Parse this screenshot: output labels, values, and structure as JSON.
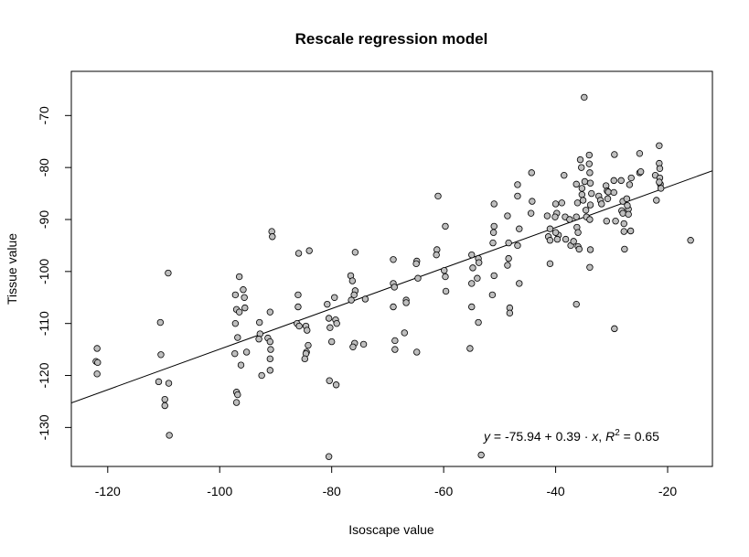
{
  "chart_data": {
    "type": "scatter",
    "title": "Rescale regression model",
    "xlabel": "Isoscape value",
    "ylabel": "Tissue value",
    "xlim": [
      -126.5,
      -12
    ],
    "ylim": [
      -137.5,
      -61.5
    ],
    "xticks": [
      -120,
      -100,
      -80,
      -60,
      -40,
      -20
    ],
    "yticks": [
      -130,
      -120,
      -110,
      -100,
      -90,
      -80,
      -70
    ],
    "grid": false,
    "legend": "none",
    "regression_line": {
      "intercept": -75.94,
      "slope": 0.39
    },
    "annotation": {
      "y_var": "y",
      "eq_mid": " = -75.94 + 0.39 · ",
      "x_var": "x",
      "sep": ",  ",
      "r_var": "R",
      "r_exp": "2",
      "r_val": " = 0.65"
    },
    "points": [
      [
        -121.9,
        -114.8
      ],
      [
        -122.1,
        -117.3
      ],
      [
        -121.8,
        -117.5
      ],
      [
        -121.9,
        -119.7
      ],
      [
        -110.6,
        -109.8
      ],
      [
        -110.5,
        -116.0
      ],
      [
        -110.9,
        -121.2
      ],
      [
        -109.8,
        -124.6
      ],
      [
        -109.8,
        -125.8
      ],
      [
        -109.1,
        -121.5
      ],
      [
        -109.0,
        -131.5
      ],
      [
        -109.2,
        -100.3
      ],
      [
        -97.2,
        -104.5
      ],
      [
        -97.0,
        -107.3
      ],
      [
        -96.5,
        -107.8
      ],
      [
        -96.5,
        -101.0
      ],
      [
        -97.2,
        -110.0
      ],
      [
        -96.8,
        -112.7
      ],
      [
        -97.3,
        -115.8
      ],
      [
        -96.2,
        -118.0
      ],
      [
        -97.0,
        -123.2
      ],
      [
        -96.8,
        -123.7
      ],
      [
        -97.0,
        -125.2
      ],
      [
        -95.8,
        -103.5
      ],
      [
        -95.6,
        -105.0
      ],
      [
        -95.5,
        -107.0
      ],
      [
        -95.2,
        -115.5
      ],
      [
        -92.9,
        -109.8
      ],
      [
        -92.8,
        -112.0
      ],
      [
        -93.0,
        -113.0
      ],
      [
        -92.5,
        -120.0
      ],
      [
        -90.7,
        -92.3
      ],
      [
        -90.6,
        -93.3
      ],
      [
        -91.0,
        -107.8
      ],
      [
        -91.4,
        -112.8
      ],
      [
        -91.0,
        -113.5
      ],
      [
        -90.9,
        -115.0
      ],
      [
        -91.0,
        -116.8
      ],
      [
        -91.0,
        -119.0
      ],
      [
        -85.9,
        -96.5
      ],
      [
        -86.0,
        -104.5
      ],
      [
        -86.0,
        -106.8
      ],
      [
        -86.2,
        -110.0
      ],
      [
        -85.8,
        -110.5
      ],
      [
        -84.6,
        -110.5
      ],
      [
        -84.0,
        -96.0
      ],
      [
        -84.4,
        -111.3
      ],
      [
        -84.2,
        -114.2
      ],
      [
        -84.5,
        -115.5
      ],
      [
        -84.6,
        -115.8
      ],
      [
        -84.8,
        -116.8
      ],
      [
        -80.8,
        -106.3
      ],
      [
        -80.5,
        -109.0
      ],
      [
        -80.3,
        -110.8
      ],
      [
        -80.0,
        -113.5
      ],
      [
        -80.4,
        -121.0
      ],
      [
        -80.5,
        -135.6
      ],
      [
        -79.5,
        -105.0
      ],
      [
        -79.3,
        -109.3
      ],
      [
        -79.1,
        -110.0
      ],
      [
        -79.2,
        -121.8
      ],
      [
        -76.6,
        -100.8
      ],
      [
        -76.3,
        -101.8
      ],
      [
        -75.8,
        -103.7
      ],
      [
        -76.0,
        -104.5
      ],
      [
        -76.5,
        -105.5
      ],
      [
        -75.8,
        -96.3
      ],
      [
        -75.9,
        -113.8
      ],
      [
        -76.2,
        -114.5
      ],
      [
        -74.0,
        -105.3
      ],
      [
        -74.3,
        -114.0
      ],
      [
        -69.0,
        -97.7
      ],
      [
        -69.0,
        -102.3
      ],
      [
        -68.8,
        -103.0
      ],
      [
        -69.0,
        -106.8
      ],
      [
        -68.7,
        -113.3
      ],
      [
        -68.7,
        -115.0
      ],
      [
        -66.7,
        -105.5
      ],
      [
        -66.7,
        -106.0
      ],
      [
        -67.0,
        -111.8
      ],
      [
        -64.8,
        -98.0
      ],
      [
        -64.9,
        -98.5
      ],
      [
        -64.6,
        -101.3
      ],
      [
        -64.8,
        -115.5
      ],
      [
        -61.0,
        -85.5
      ],
      [
        -61.2,
        -95.8
      ],
      [
        -61.3,
        -96.8
      ],
      [
        -59.7,
        -91.3
      ],
      [
        -59.9,
        -99.8
      ],
      [
        -59.7,
        -101.0
      ],
      [
        -59.6,
        -103.8
      ],
      [
        -55.0,
        -96.8
      ],
      [
        -54.8,
        -99.3
      ],
      [
        -55.0,
        -102.3
      ],
      [
        -55.0,
        -106.8
      ],
      [
        -55.3,
        -114.8
      ],
      [
        -53.8,
        -97.5
      ],
      [
        -53.7,
        -98.3
      ],
      [
        -54.0,
        -101.3
      ],
      [
        -53.8,
        -109.8
      ],
      [
        -53.3,
        -135.3
      ],
      [
        -51.0,
        -87.0
      ],
      [
        -51.0,
        -91.3
      ],
      [
        -51.1,
        -92.5
      ],
      [
        -51.2,
        -94.5
      ],
      [
        -51.0,
        -100.8
      ],
      [
        -51.3,
        -104.5
      ],
      [
        -48.6,
        -89.3
      ],
      [
        -48.4,
        -94.5
      ],
      [
        -48.4,
        -97.5
      ],
      [
        -48.6,
        -98.8
      ],
      [
        -48.2,
        -107.0
      ],
      [
        -48.2,
        -108.0
      ],
      [
        -46.8,
        -83.3
      ],
      [
        -46.8,
        -85.5
      ],
      [
        -46.5,
        -91.8
      ],
      [
        -46.8,
        -95.0
      ],
      [
        -46.5,
        -102.3
      ],
      [
        -44.3,
        -81.0
      ],
      [
        -44.2,
        -86.5
      ],
      [
        -44.4,
        -88.8
      ],
      [
        -41.5,
        -89.3
      ],
      [
        -41.0,
        -91.8
      ],
      [
        -41.3,
        -93.3
      ],
      [
        -41.0,
        -94.0
      ],
      [
        -41.0,
        -98.5
      ],
      [
        -40.0,
        -87.0
      ],
      [
        -39.8,
        -88.8
      ],
      [
        -40.1,
        -89.5
      ],
      [
        -39.5,
        -93.0
      ],
      [
        -39.7,
        -93.8
      ],
      [
        -40.0,
        -92.5
      ],
      [
        -38.9,
        -86.8
      ],
      [
        -38.5,
        -81.5
      ],
      [
        -38.3,
        -89.5
      ],
      [
        -38.2,
        -93.8
      ],
      [
        -37.5,
        -90.0
      ],
      [
        -37.3,
        -95.0
      ],
      [
        -36.8,
        -94.2
      ],
      [
        -36.3,
        -83.2
      ],
      [
        -36.1,
        -86.8
      ],
      [
        -36.3,
        -89.5
      ],
      [
        -36.2,
        -91.5
      ],
      [
        -36.0,
        -92.5
      ],
      [
        -36.0,
        -95.2
      ],
      [
        -35.8,
        -95.7
      ],
      [
        -36.3,
        -106.3
      ],
      [
        -35.6,
        -78.5
      ],
      [
        -35.4,
        -80.0
      ],
      [
        -35.3,
        -84.0
      ],
      [
        -35.3,
        -85.2
      ],
      [
        -35.1,
        -86.3
      ],
      [
        -34.9,
        -66.5
      ],
      [
        -34.8,
        -82.7
      ],
      [
        -34.6,
        -88.2
      ],
      [
        -34.5,
        -89.5
      ],
      [
        -34.0,
        -77.6
      ],
      [
        -34.0,
        -79.3
      ],
      [
        -33.9,
        -81.0
      ],
      [
        -33.8,
        -83.0
      ],
      [
        -33.6,
        -85.0
      ],
      [
        -33.8,
        -87.2
      ],
      [
        -33.9,
        -90.0
      ],
      [
        -33.8,
        -95.8
      ],
      [
        -33.9,
        -99.2
      ],
      [
        -32.3,
        -85.5
      ],
      [
        -32.0,
        -86.3
      ],
      [
        -31.8,
        -87.0
      ],
      [
        -31.0,
        -83.5
      ],
      [
        -30.8,
        -84.5
      ],
      [
        -30.7,
        -86.0
      ],
      [
        -30.9,
        -90.3
      ],
      [
        -30.6,
        -84.7
      ],
      [
        -29.5,
        -77.5
      ],
      [
        -29.6,
        -82.5
      ],
      [
        -29.6,
        -84.8
      ],
      [
        -29.3,
        -90.3
      ],
      [
        -29.5,
        -111.0
      ],
      [
        -28.3,
        -82.5
      ],
      [
        -28.0,
        -86.5
      ],
      [
        -28.2,
        -88.3
      ],
      [
        -28.0,
        -88.8
      ],
      [
        -27.8,
        -90.8
      ],
      [
        -27.8,
        -92.3
      ],
      [
        -27.7,
        -95.7
      ],
      [
        -27.3,
        -86.0
      ],
      [
        -27.0,
        -88.0
      ],
      [
        -27.2,
        -87.3
      ],
      [
        -27.0,
        -89.0
      ],
      [
        -26.8,
        -83.3
      ],
      [
        -26.5,
        -82.0
      ],
      [
        -26.6,
        -92.2
      ],
      [
        -25.0,
        -77.3
      ],
      [
        -25.0,
        -81.0
      ],
      [
        -24.8,
        -80.8
      ],
      [
        -22.2,
        -81.5
      ],
      [
        -22.0,
        -86.3
      ],
      [
        -21.5,
        -75.8
      ],
      [
        -21.5,
        -79.2
      ],
      [
        -21.4,
        -80.2
      ],
      [
        -21.4,
        -82.0
      ],
      [
        -21.3,
        -83.2
      ],
      [
        -21.2,
        -84.0
      ],
      [
        -21.5,
        -82.8
      ],
      [
        -15.9,
        -94.0
      ]
    ]
  }
}
